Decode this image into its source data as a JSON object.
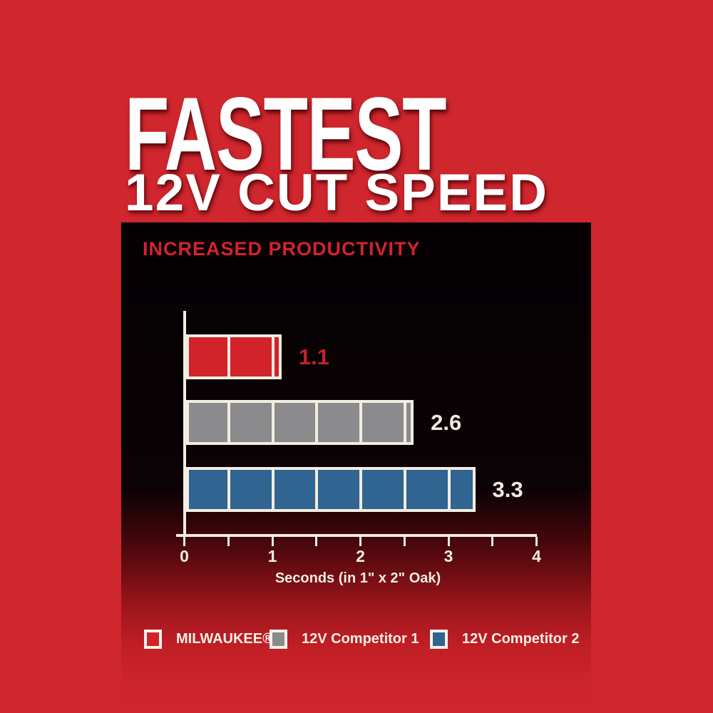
{
  "hero": {
    "title": "FASTEST",
    "subtitle": "12V CUT SPEED"
  },
  "panel": {
    "heading": "INCREASED PRODUCTIVITY"
  },
  "chart_data": {
    "type": "bar",
    "orientation": "horizontal",
    "title": "INCREASED PRODUCTIVITY",
    "categories": [
      "MILWAUKEE®",
      "12V Competitor 1",
      "12V Competitor 2"
    ],
    "values": [
      1.1,
      2.6,
      3.3
    ],
    "value_labels": [
      "1.1",
      "2.6",
      "3.3"
    ],
    "bar_colors": [
      "#d2232b",
      "#8b8b8d",
      "#2f6590"
    ],
    "value_label_colors": [
      "#c7212a",
      "#f0e8de",
      "#f4ebe2"
    ],
    "segment_interval": 0.5,
    "xlabel": "Seconds (in 1\" x 2\" Oak)",
    "xlim": [
      0,
      4
    ],
    "xtick_step": 0.5,
    "xtick_label_step": 1,
    "xtick_labels": [
      "0",
      "1",
      "2",
      "3",
      "4"
    ],
    "grid": false,
    "legend_position": "bottom",
    "axis_color": "#f3ece2",
    "bar_border_color": "#f3ece2"
  },
  "legend": {
    "items": [
      {
        "label": "MILWAUKEE®",
        "color": "#d2232b"
      },
      {
        "label": "12V Competitor 1",
        "color": "#8b8b8d"
      },
      {
        "label": "12V Competitor 2",
        "color": "#2f6590"
      }
    ]
  },
  "colors": {
    "background": "#d0262d",
    "panel_top": "#050103",
    "accent_red": "#d3242c",
    "cream": "#f3ece2"
  }
}
